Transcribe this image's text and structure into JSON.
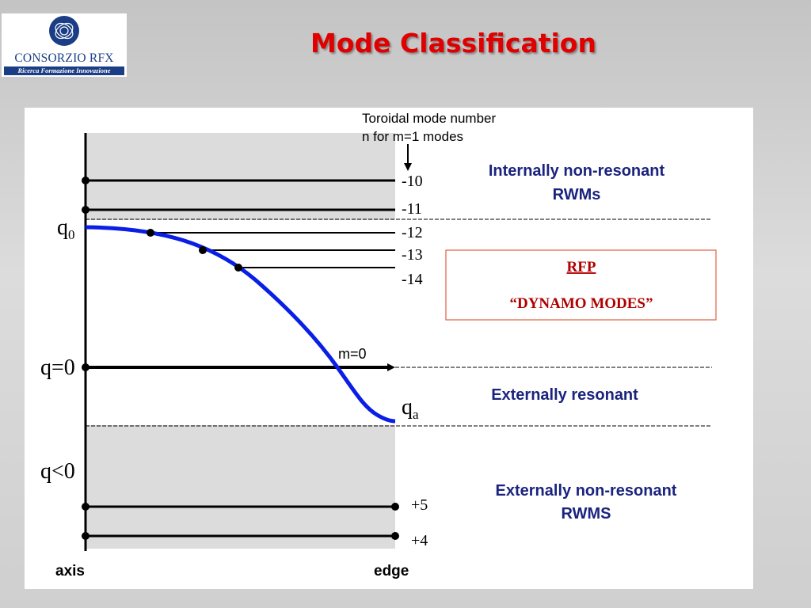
{
  "logo": {
    "name": "CONSORZIO RFX",
    "tagline": "Ricerca Formazione Innovazione"
  },
  "slide": {
    "title": "Mode Classification"
  },
  "diagram": {
    "header_line1": "Toroidal mode number",
    "header_line2": "n for m=1 modes",
    "axis_label": "axis",
    "edge_label": "edge",
    "q0_label": "q",
    "q0_sub": "0",
    "qa_label": "q",
    "qa_sub": "a",
    "q_zero_label": "q=0",
    "q_negative_label": "q<0",
    "m0_label": "m=0",
    "mode_numbers": {
      "n_m10": "-10",
      "n_m11": "-11",
      "n_m12": "-12",
      "n_m13": "-13",
      "n_m14": "-14",
      "n_p5": "+5",
      "n_p4": "+4"
    },
    "regions": {
      "internal_line1": "Internally non-resonant",
      "internal_line2": "RWMs",
      "external_resonant": "Externally resonant",
      "external_nonres_line1": "Externally non-resonant",
      "external_nonres_line2": "RWMS"
    },
    "rfp_box": {
      "line1": "RFP",
      "line2": "“DYNAMO MODES”"
    },
    "colors": {
      "title": "#e00000",
      "region_text": "#1a237e",
      "curve": "#0a1ee6",
      "rfp_text": "#b00000",
      "rfp_border": "#e06040",
      "shade": "#dcdcdc"
    }
  }
}
